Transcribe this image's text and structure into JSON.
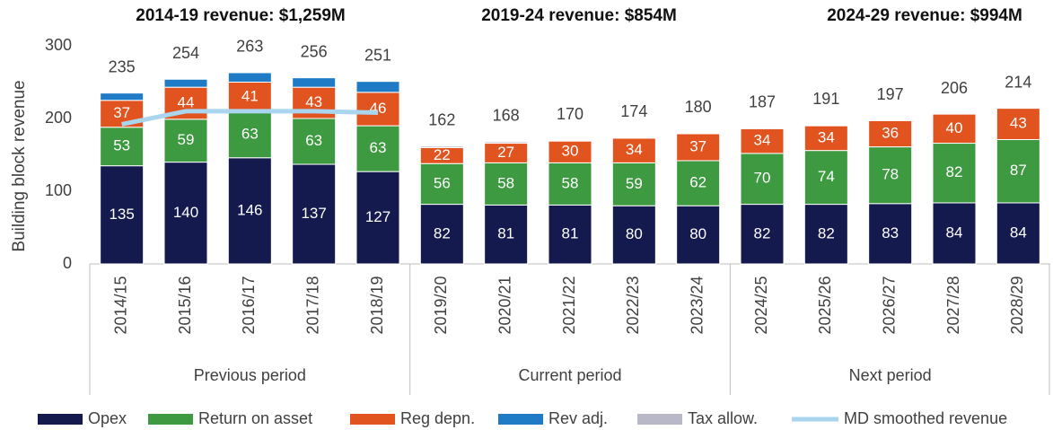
{
  "chart_data": {
    "type": "stacked_bar",
    "period_titles": [
      "2014-19 revenue: $1,259M",
      "2019-24 revenue: $854M",
      "2024-29 revenue: $994M"
    ],
    "ylabel": "Building block revenue",
    "categories": [
      "2014/15",
      "2015/16",
      "2016/17",
      "2017/18",
      "2018/19",
      "2019/20",
      "2020/21",
      "2021/22",
      "2022/23",
      "2023/24",
      "2024/25",
      "2025/26",
      "2026/27",
      "2027/28",
      "2028/29"
    ],
    "groups": [
      {
        "label": "Previous period",
        "start": 0,
        "end": 4
      },
      {
        "label": "Current period",
        "start": 5,
        "end": 9
      },
      {
        "label": "Next period",
        "start": 10,
        "end": 14
      }
    ],
    "series": [
      {
        "name": "Opex",
        "color": "#141a4e",
        "values": [
          135,
          140,
          146,
          137,
          127,
          82,
          81,
          81,
          80,
          80,
          82,
          82,
          83,
          84,
          84
        ]
      },
      {
        "name": "Return on asset",
        "color": "#3d9a41",
        "values": [
          53,
          59,
          63,
          63,
          63,
          56,
          58,
          58,
          59,
          62,
          70,
          74,
          78,
          82,
          87
        ]
      },
      {
        "name": "Reg depn.",
        "color": "#e2541f",
        "values": [
          37,
          44,
          41,
          43,
          46,
          22,
          27,
          30,
          34,
          37,
          34,
          34,
          36,
          40,
          43
        ]
      },
      {
        "name": "Rev adj.",
        "color": "#1f7bc6",
        "values": [
          10,
          11,
          13,
          13,
          15,
          0,
          0,
          0,
          0,
          0,
          0,
          0,
          0,
          0,
          0
        ]
      },
      {
        "name": "Tax allow.",
        "color": "#b8b8c8",
        "values": [
          0,
          0,
          0,
          0,
          0,
          2,
          2,
          1,
          1,
          1,
          1,
          1,
          0,
          0,
          0
        ]
      }
    ],
    "line": {
      "name": "MD smoothed revenue",
      "color": "#a9d5ee",
      "values": [
        192,
        210,
        210,
        210,
        208,
        null,
        null,
        null,
        null,
        null,
        null,
        null,
        null,
        null,
        null
      ]
    },
    "totals": [
      235,
      254,
      263,
      256,
      251,
      162,
      168,
      170,
      174,
      180,
      187,
      191,
      197,
      206,
      214
    ],
    "ylim": [
      0,
      300
    ],
    "yticks": [
      0,
      100,
      200,
      300
    ],
    "grid": false
  }
}
